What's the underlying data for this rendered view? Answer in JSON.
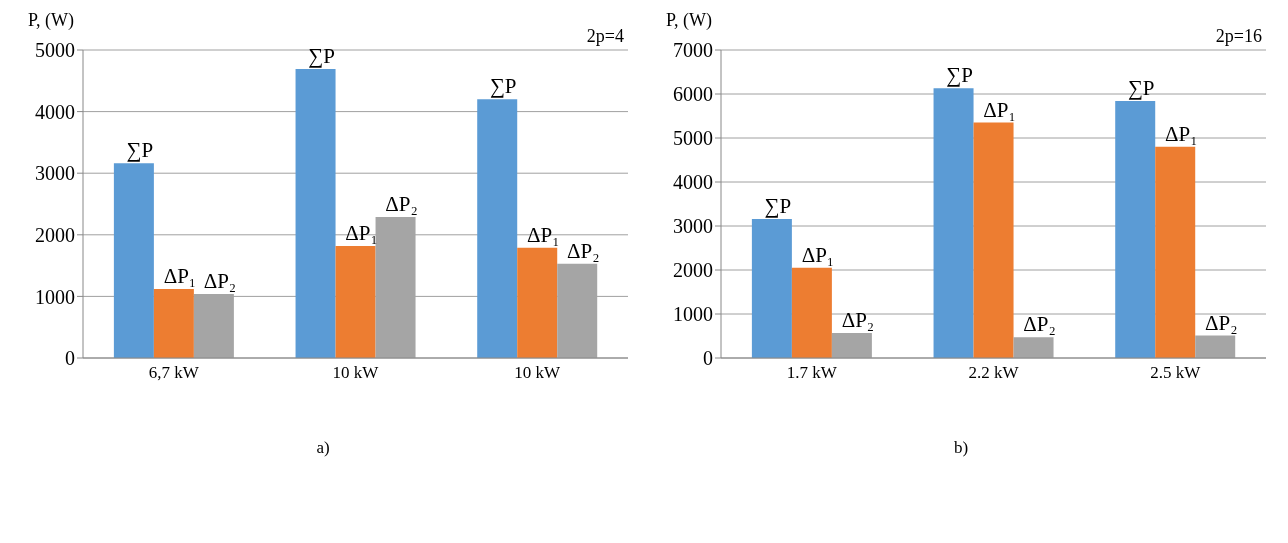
{
  "chart_data": [
    {
      "type": "bar",
      "ylabel": "P, (W)",
      "annotations": [
        "2p=4",
        "a)"
      ],
      "categories": [
        "6,7 kW",
        "10 kW",
        "10 kW"
      ],
      "series": [
        {
          "name": "∑P",
          "color": "#5b9bd5",
          "values": [
            3160,
            4690,
            4200
          ]
        },
        {
          "name": "ΔP₁",
          "color": "#ed7d31",
          "values": [
            1120,
            1820,
            1790
          ]
        },
        {
          "name": "ΔP₂",
          "color": "#a5a5a5",
          "values": [
            1040,
            2290,
            1530
          ]
        }
      ],
      "ylim": [
        0,
        5000
      ],
      "yticks": [
        0,
        1000,
        2000,
        3000,
        4000,
        5000
      ],
      "grid": "y",
      "legend": false
    },
    {
      "type": "bar",
      "ylabel": "P, (W)",
      "annotations": [
        "2p=16",
        "b)"
      ],
      "categories": [
        "1.7 kW",
        "2.2 kW",
        "2.5 kW"
      ],
      "series": [
        {
          "name": "∑P",
          "color": "#5b9bd5",
          "values": [
            3160,
            6130,
            5840
          ]
        },
        {
          "name": "ΔP₁",
          "color": "#ed7d31",
          "values": [
            2050,
            5350,
            4800
          ]
        },
        {
          "name": "ΔP₂",
          "color": "#a5a5a5",
          "values": [
            570,
            470,
            510
          ]
        }
      ],
      "ylim": [
        0,
        7000
      ],
      "yticks": [
        0,
        1000,
        2000,
        3000,
        4000,
        5000,
        6000,
        7000
      ],
      "grid": "y",
      "legend": false
    }
  ]
}
